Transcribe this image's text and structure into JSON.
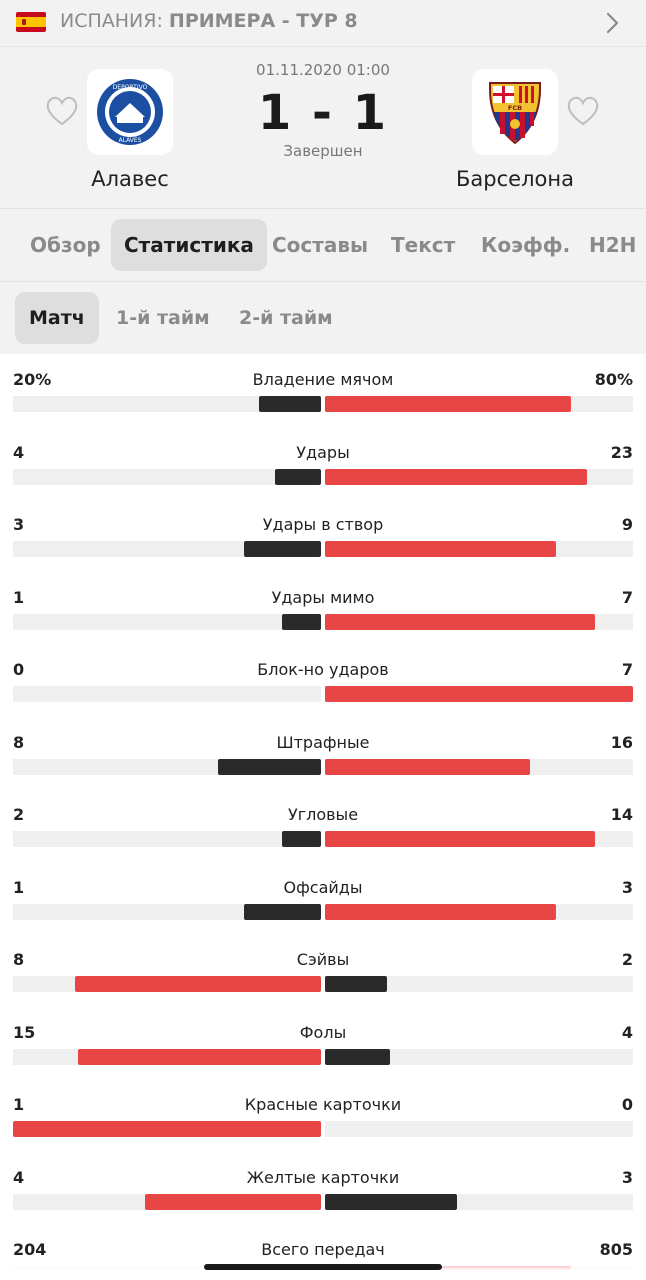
{
  "header": {
    "country": "ИСПАНИЯ:",
    "league": "ПРИМЕРА - ТУР 8"
  },
  "match": {
    "datetime": "01.11.2020 01:00",
    "score": "1 - 1",
    "status": "Завершен",
    "home_team": "Алавес",
    "away_team": "Барселона"
  },
  "tabs": [
    "Обзор",
    "Статистика",
    "Составы",
    "Текст",
    "Коэфф.",
    "H2H"
  ],
  "active_tab": "Статистика",
  "subtabs": [
    "Матч",
    "1-й тайм",
    "2-й тайм"
  ],
  "active_subtab": "Матч",
  "colors": {
    "winner": "#e84545",
    "loser": "#2a2a2a",
    "track": "#efefef"
  },
  "stats": [
    {
      "label": "Владение мячом",
      "home": "20%",
      "away": "80%",
      "home_share": 0.2,
      "away_share": 0.8
    },
    {
      "label": "Удары",
      "home": "4",
      "away": "23",
      "home_share": 0.148,
      "away_share": 0.852
    },
    {
      "label": "Удары в створ",
      "home": "3",
      "away": "9",
      "home_share": 0.25,
      "away_share": 0.75
    },
    {
      "label": "Удары мимо",
      "home": "1",
      "away": "7",
      "home_share": 0.125,
      "away_share": 0.875
    },
    {
      "label": "Блок-но ударов",
      "home": "0",
      "away": "7",
      "home_share": 0.0,
      "away_share": 1.0
    },
    {
      "label": "Штрафные",
      "home": "8",
      "away": "16",
      "home_share": 0.333,
      "away_share": 0.667
    },
    {
      "label": "Угловые",
      "home": "2",
      "away": "14",
      "home_share": 0.125,
      "away_share": 0.875
    },
    {
      "label": "Офсайды",
      "home": "1",
      "away": "3",
      "home_share": 0.25,
      "away_share": 0.75
    },
    {
      "label": "Сэйвы",
      "home": "8",
      "away": "2",
      "home_share": 0.8,
      "away_share": 0.2
    },
    {
      "label": "Фолы",
      "home": "15",
      "away": "4",
      "home_share": 0.789,
      "away_share": 0.211
    },
    {
      "label": "Красные карточки",
      "home": "1",
      "away": "0",
      "home_share": 1.0,
      "away_share": 0.0
    },
    {
      "label": "Желтые карточки",
      "home": "4",
      "away": "3",
      "home_share": 0.571,
      "away_share": 0.429
    },
    {
      "label": "Всего передач",
      "home": "204",
      "away": "805",
      "home_share": 0.202,
      "away_share": 0.798
    }
  ]
}
